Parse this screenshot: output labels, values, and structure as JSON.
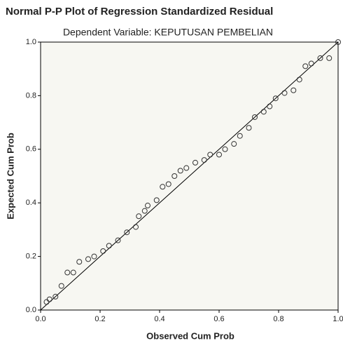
{
  "chart_data": {
    "type": "scatter",
    "title": "Normal P-P Plot of Regression Standardized Residual",
    "subtitle": "Dependent Variable: KEPUTUSAN PEMBELIAN",
    "x_label": "Observed Cum Prob",
    "y_label": "Expected Cum Prob",
    "xlim": [
      0,
      1
    ],
    "ylim": [
      0,
      1
    ],
    "xticks": [
      {
        "value": 0,
        "label": "0.0"
      },
      0.2,
      0.4,
      0.6,
      0.8,
      {
        "value": 1,
        "label": "1.0"
      }
    ],
    "yticks": [
      {
        "value": 0,
        "label": "0.0"
      },
      0.2,
      0.4,
      0.6,
      0.8,
      {
        "value": 1,
        "label": "1.0"
      }
    ],
    "color": "#333333",
    "x": [
      0.02,
      0.03,
      0.05,
      0.07,
      0.09,
      0.11,
      0.13,
      0.16,
      0.18,
      0.21,
      0.23,
      0.26,
      0.29,
      0.32,
      0.33,
      0.35,
      0.36,
      0.39,
      0.41,
      0.43,
      0.45,
      0.47,
      0.49,
      0.52,
      0.55,
      0.57,
      0.6,
      0.62,
      0.65,
      0.67,
      0.7,
      0.72,
      0.75,
      0.77,
      0.79,
      0.82,
      0.85,
      0.87,
      0.89,
      0.91,
      0.94,
      0.97,
      1.0
    ],
    "values": [
      0.03,
      0.04,
      0.05,
      0.09,
      0.14,
      0.14,
      0.18,
      0.19,
      0.2,
      0.22,
      0.24,
      0.26,
      0.29,
      0.31,
      0.35,
      0.37,
      0.39,
      0.41,
      0.46,
      0.47,
      0.5,
      0.52,
      0.53,
      0.55,
      0.56,
      0.58,
      0.58,
      0.6,
      0.62,
      0.65,
      0.68,
      0.72,
      0.74,
      0.76,
      0.79,
      0.81,
      0.82,
      0.86,
      0.91,
      0.92,
      0.94,
      0.94,
      1.0
    ]
  }
}
